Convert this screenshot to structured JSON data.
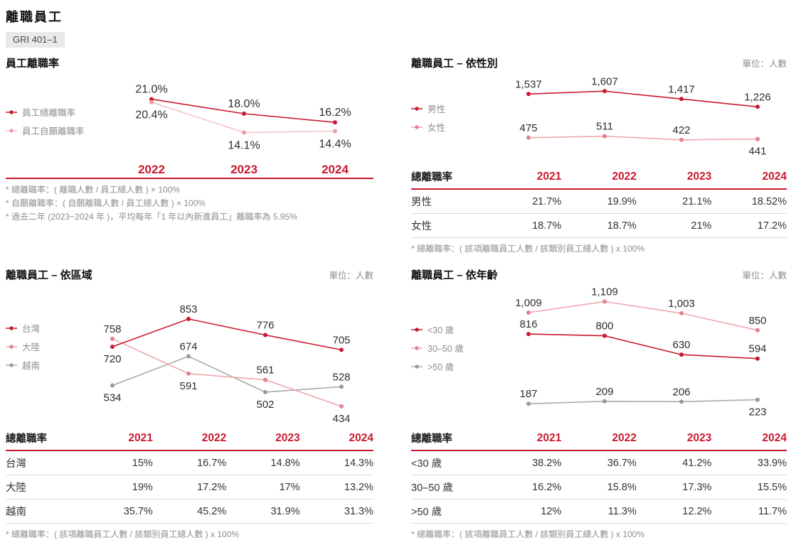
{
  "page": {
    "title": "離職員工",
    "badge": "GRI 401–1"
  },
  "colors": {
    "red": {
      "line": "#c8192e",
      "dot": "#c8192e"
    },
    "pink": {
      "line": "#eea7ae",
      "dot": "#e08290"
    },
    "pink_light": {
      "line": "#f3c3c7",
      "dot": "#ec9ba4"
    },
    "gray": {
      "line": "#ababab",
      "dot": "#9a9a9a"
    },
    "accent_red_text": "#c8192e"
  },
  "chart_data": [
    {
      "type": "line",
      "title": "員工離職率",
      "unit": "",
      "categories": [
        "2022",
        "2023",
        "2024"
      ],
      "series": [
        {
          "name": "員工總離職率",
          "color": "red",
          "values": [
            21.0,
            18.0,
            16.2
          ],
          "labels": [
            "21.0%",
            "18.0%",
            "16.2%"
          ],
          "label_side": [
            "above",
            "above",
            "above"
          ]
        },
        {
          "name": "員工自願離職率",
          "color": "pink_light",
          "values": [
            20.4,
            14.1,
            14.4
          ],
          "labels": [
            "20.4%",
            "14.1%",
            "14.4%"
          ],
          "label_side": [
            "below",
            "below",
            "below"
          ]
        }
      ],
      "ylim": [
        13,
        23
      ],
      "legend_position": "left",
      "grid": false,
      "x_axis_labels_shown": true
    },
    {
      "type": "line",
      "title": "離職員工 – 依性別",
      "unit": "單位：人數",
      "categories": [
        "2021",
        "2022",
        "2023",
        "2024"
      ],
      "series": [
        {
          "name": "男性",
          "color": "red",
          "values": [
            1537,
            1607,
            1417,
            1226
          ],
          "labels": [
            "1,537",
            "1,607",
            "1,417",
            "1,226"
          ],
          "label_side": [
            "above",
            "above",
            "above",
            "above"
          ]
        },
        {
          "name": "女性",
          "color": "pink",
          "values": [
            475,
            511,
            422,
            441
          ],
          "labels": [
            "475",
            "511",
            "422",
            "441"
          ],
          "label_side": [
            "above",
            "above",
            "above",
            "below"
          ]
        }
      ],
      "ylim": [
        350,
        1750
      ],
      "legend_position": "left",
      "grid": false,
      "x_axis_labels_shown": false
    },
    {
      "type": "line",
      "title": "離職員工 – 依區域",
      "unit": "單位：人數",
      "categories": [
        "2021",
        "2022",
        "2023",
        "2024"
      ],
      "series": [
        {
          "name": "台灣",
          "color": "red",
          "values": [
            720,
            853,
            776,
            705
          ],
          "labels": [
            "720",
            "853",
            "776",
            "705"
          ],
          "label_side": [
            "below",
            "above",
            "above",
            "above"
          ]
        },
        {
          "name": "大陸",
          "color": "pink",
          "values": [
            758,
            591,
            561,
            434
          ],
          "labels": [
            "758",
            "591",
            "561",
            "434"
          ],
          "label_side": [
            "above",
            "below",
            "above",
            "below"
          ]
        },
        {
          "name": "越南",
          "color": "gray",
          "values": [
            534,
            674,
            502,
            528
          ],
          "labels": [
            "534",
            "674",
            "502",
            "528"
          ],
          "label_side": [
            "below",
            "above",
            "below",
            "above"
          ]
        }
      ],
      "ylim": [
        420,
        880
      ],
      "legend_position": "left",
      "grid": false,
      "x_axis_labels_shown": false
    },
    {
      "type": "line",
      "title": "離職員工 – 依年齡",
      "unit": "單位：人數",
      "categories": [
        "2021",
        "2022",
        "2023",
        "2024"
      ],
      "series": [
        {
          "name": "<30 歲",
          "color": "red",
          "values": [
            816,
            800,
            630,
            594
          ],
          "labels": [
            "816",
            "800",
            "630",
            "594"
          ],
          "label_side": [
            "above",
            "above",
            "above",
            "above"
          ]
        },
        {
          "name": "30–50 歲",
          "color": "pink",
          "values": [
            1009,
            1109,
            1003,
            850
          ],
          "labels": [
            "1,009",
            "1,109",
            "1,003",
            "850"
          ],
          "label_side": [
            "above",
            "above",
            "above",
            "above"
          ]
        },
        {
          "name": ">50 歲",
          "color": "gray",
          "values": [
            187,
            209,
            206,
            223
          ],
          "labels": [
            "187",
            "209",
            "206",
            "223"
          ],
          "label_side": [
            "above",
            "above",
            "above",
            "below"
          ]
        }
      ],
      "ylim": [
        150,
        1150
      ],
      "legend_position": "left",
      "grid": false,
      "x_axis_labels_shown": false
    }
  ],
  "panels": [
    {
      "id": "turnover-rate",
      "chart_index": 0,
      "footnotes": [
        "* 總離職率：( 離職人數 / 員工總人數 ) × 100%",
        "* 自願離職率：( 自願離職人數 / 員工總人數 ) × 100%",
        "* 過去二年 (2023~2024 年 )，平均每年「1 年以內新進員工」離職率為 5.95%"
      ]
    },
    {
      "id": "by-gender",
      "chart_index": 1,
      "table": {
        "header": [
          "總離職率",
          "2021",
          "2022",
          "2023",
          "2024"
        ],
        "rows": [
          {
            "label": "男性",
            "values": [
              "21.7%",
              "19.9%",
              "21.1%",
              "18.52%"
            ]
          },
          {
            "label": "女性",
            "values": [
              "18.7%",
              "18.7%",
              "21%",
              "17.2%"
            ]
          }
        ]
      },
      "footnotes": [
        "* 總離職率：( 該項離職員工人數 / 該類別員工總人數 ) x 100%"
      ]
    },
    {
      "id": "by-region",
      "chart_index": 2,
      "table": {
        "header": [
          "總離職率",
          "2021",
          "2022",
          "2023",
          "2024"
        ],
        "rows": [
          {
            "label": "台灣",
            "values": [
              "15%",
              "16.7%",
              "14.8%",
              "14.3%"
            ]
          },
          {
            "label": "大陸",
            "values": [
              "19%",
              "17.2%",
              "17%",
              "13.2%"
            ]
          },
          {
            "label": "越南",
            "values": [
              "35.7%",
              "45.2%",
              "31.9%",
              "31.3%"
            ]
          }
        ]
      },
      "footnotes": [
        "* 總離職率：( 該項離職員工人數 / 該類別員工總人數 ) x 100%"
      ]
    },
    {
      "id": "by-age",
      "chart_index": 3,
      "table": {
        "header": [
          "總離職率",
          "2021",
          "2022",
          "2023",
          "2024"
        ],
        "rows": [
          {
            "label": "<30 歲",
            "values": [
              "38.2%",
              "36.7%",
              "41.2%",
              "33.9%"
            ]
          },
          {
            "label": "30–50 歲",
            "values": [
              "16.2%",
              "15.8%",
              "17.3%",
              "15.5%"
            ]
          },
          {
            "label": ">50 歲",
            "values": [
              "12%",
              "11.3%",
              "12.2%",
              "11.7%"
            ]
          }
        ]
      },
      "footnotes": [
        "* 總離職率：( 該項離職員工人數 / 該類別員工總人數 ) x 100%"
      ]
    }
  ]
}
